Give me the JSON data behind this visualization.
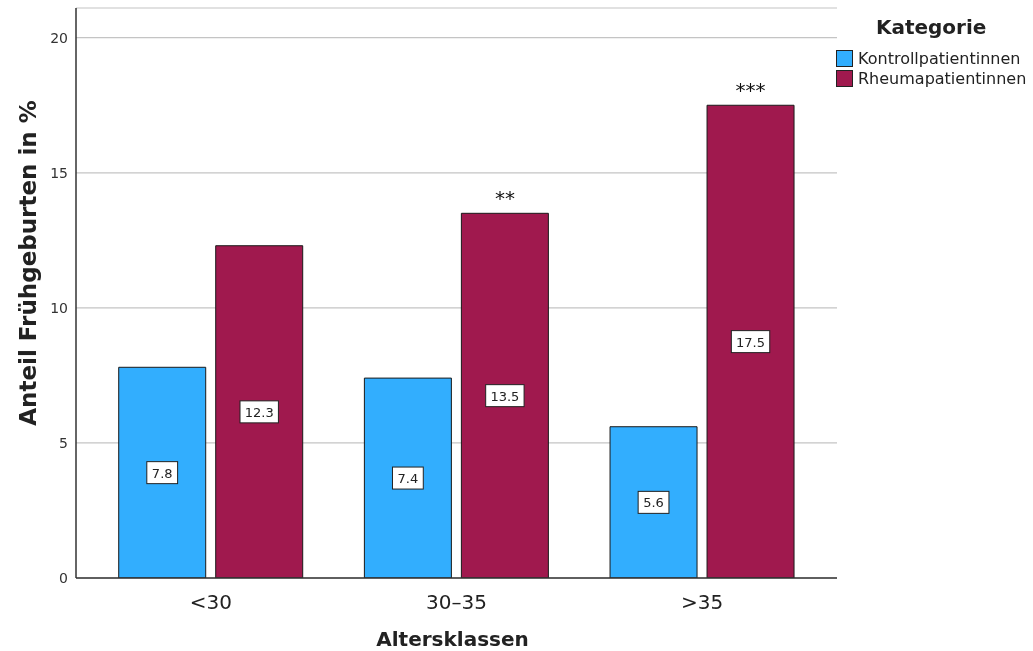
{
  "chart_data": {
    "type": "bar",
    "xlabel": "Altersklassen",
    "ylabel": "Anteil Frühgeburten in %",
    "legend_title": "Kategorie",
    "categories": [
      "<30",
      "30–35",
      ">35"
    ],
    "series": [
      {
        "name": "Kontrollpatientinnen",
        "color": "#32aefe",
        "values": [
          7.8,
          7.4,
          5.6
        ]
      },
      {
        "name": "Rheumapatientinnen",
        "color": "#a0194e",
        "values": [
          12.3,
          13.5,
          17.5
        ]
      }
    ],
    "ylim": [
      0,
      21.1
    ],
    "yticks": [
      0,
      5,
      10,
      15,
      20
    ],
    "grid": "y",
    "legend": "top right",
    "data_labels": true,
    "annotations": [
      {
        "text": "**",
        "x": "30–35",
        "y": 13.5
      },
      {
        "text": "***",
        "x": ">35",
        "y": 17.5
      }
    ]
  }
}
